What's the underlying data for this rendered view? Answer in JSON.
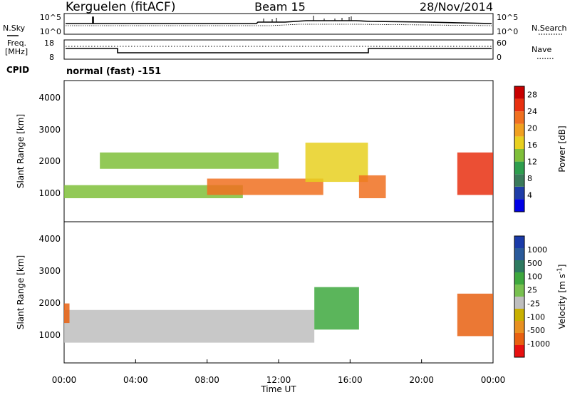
{
  "header": {
    "station": "Kerguelen (fitACF)",
    "beam": "Beam 15",
    "date": "28/Nov/2014"
  },
  "noise_panel": {
    "left_label": "N.Sky",
    "right_label": "N.Search",
    "left_ticks": [
      "10^5",
      "10^0"
    ],
    "right_ticks": [
      "10^5",
      "10^0"
    ]
  },
  "freq_panel": {
    "left_label_line1": "Freq.",
    "left_label_line2": "[MHz]",
    "right_label": "Nave",
    "left_ticks": [
      "18",
      "8"
    ],
    "right_ticks": [
      "60",
      "0"
    ]
  },
  "cpid": {
    "label": "CPID",
    "value": "normal (fast) -151"
  },
  "colors": {
    "power_scale": [
      "#0000e6",
      "#1f3da8",
      "#3a7a5a",
      "#2e9e4e",
      "#7fbf3a",
      "#e8d020",
      "#f0a020",
      "#f07020",
      "#e83010",
      "#c80000"
    ],
    "velocity_scale": [
      "#1a3aa8",
      "#2a5a9a",
      "#2e7a60",
      "#3ea83e",
      "#78c050",
      "#bebebe",
      "#c8b000",
      "#e89020",
      "#e86010",
      "#e81010"
    ]
  },
  "chart_data": [
    {
      "type": "heatmap",
      "title": "",
      "quantity": "Power",
      "ylabel": "Slant Range [km]",
      "xlabel": "",
      "xlim": [
        "00:00",
        "24:00"
      ],
      "ylim": [
        180,
        4500
      ],
      "y_ticks": [
        "1000",
        "2000",
        "3000",
        "4000"
      ],
      "colorbar": {
        "label": "Power [dB]",
        "range": [
          0,
          30
        ],
        "ticks": [
          "4",
          "8",
          "12",
          "16",
          "20",
          "24",
          "28"
        ]
      },
      "features": [
        {
          "start_hour": 0.0,
          "end_hour": 10.0,
          "range_km": [
            900,
            1300
          ],
          "level_db": 14
        },
        {
          "start_hour": 2.0,
          "end_hour": 12.0,
          "range_km": [
            1800,
            2300
          ],
          "level_db": 12
        },
        {
          "start_hour": 8.0,
          "end_hour": 14.5,
          "range_km": [
            1000,
            1500
          ],
          "level_db": 24
        },
        {
          "start_hour": 13.5,
          "end_hour": 17.0,
          "range_km": [
            1400,
            2600
          ],
          "level_db": 18
        },
        {
          "start_hour": 16.5,
          "end_hour": 18.0,
          "range_km": [
            900,
            1600
          ],
          "level_db": 22
        },
        {
          "start_hour": 22.0,
          "end_hour": 24.0,
          "range_km": [
            1000,
            2300
          ],
          "level_db": 26
        }
      ]
    },
    {
      "type": "heatmap",
      "title": "",
      "quantity": "Velocity",
      "ylabel": "Slant Range [km]",
      "xlabel": "Time UT",
      "xlim": [
        "00:00",
        "24:00"
      ],
      "ylim": [
        180,
        4500
      ],
      "y_ticks": [
        "1000",
        "2000",
        "3000",
        "4000"
      ],
      "x_ticks": [
        "00:00",
        "04:00",
        "08:00",
        "12:00",
        "16:00",
        "20:00",
        "00:00"
      ],
      "colorbar": {
        "label": "Velocity [m s-1]",
        "label_text": "Velocity [m s",
        "label_exponent": "-1",
        "label_close": "]",
        "range": [
          -2000,
          2000
        ],
        "ticks": [
          "1000",
          "500",
          "100",
          "25",
          "-25",
          "-100",
          "-500",
          "-1000"
        ]
      },
      "features": [
        {
          "start_hour": 0.0,
          "end_hour": 14.0,
          "range_km": [
            800,
            1800
          ],
          "velocity_ms": 0
        },
        {
          "start_hour": 14.0,
          "end_hour": 16.5,
          "range_km": [
            1200,
            2500
          ],
          "velocity_ms": 400
        },
        {
          "start_hour": 22.0,
          "end_hour": 24.0,
          "range_km": [
            1000,
            2300
          ],
          "velocity_ms": -700
        },
        {
          "start_hour": 0.0,
          "end_hour": 0.3,
          "range_km": [
            1400,
            2000
          ],
          "velocity_ms": -800
        }
      ]
    }
  ]
}
